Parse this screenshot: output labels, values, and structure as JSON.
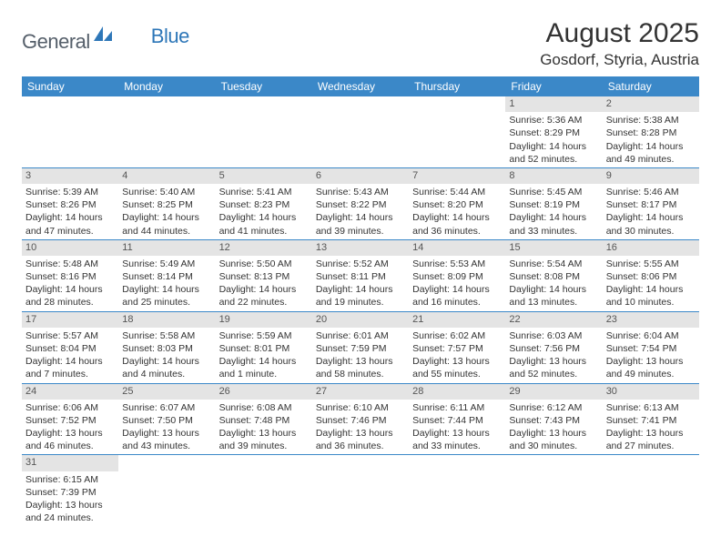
{
  "logo": {
    "text1": "General",
    "text2": "Blue"
  },
  "title": "August 2025",
  "location": "Gosdorf, Styria, Austria",
  "header_bg": "#3b88c8",
  "day_header_bg": "#e4e4e4",
  "weekdays": [
    "Sunday",
    "Monday",
    "Tuesday",
    "Wednesday",
    "Thursday",
    "Friday",
    "Saturday"
  ],
  "weeks": [
    [
      null,
      null,
      null,
      null,
      null,
      {
        "n": "1",
        "sr": "5:36 AM",
        "ss": "8:29 PM",
        "dl": "14 hours and 52 minutes."
      },
      {
        "n": "2",
        "sr": "5:38 AM",
        "ss": "8:28 PM",
        "dl": "14 hours and 49 minutes."
      }
    ],
    [
      {
        "n": "3",
        "sr": "5:39 AM",
        "ss": "8:26 PM",
        "dl": "14 hours and 47 minutes."
      },
      {
        "n": "4",
        "sr": "5:40 AM",
        "ss": "8:25 PM",
        "dl": "14 hours and 44 minutes."
      },
      {
        "n": "5",
        "sr": "5:41 AM",
        "ss": "8:23 PM",
        "dl": "14 hours and 41 minutes."
      },
      {
        "n": "6",
        "sr": "5:43 AM",
        "ss": "8:22 PM",
        "dl": "14 hours and 39 minutes."
      },
      {
        "n": "7",
        "sr": "5:44 AM",
        "ss": "8:20 PM",
        "dl": "14 hours and 36 minutes."
      },
      {
        "n": "8",
        "sr": "5:45 AM",
        "ss": "8:19 PM",
        "dl": "14 hours and 33 minutes."
      },
      {
        "n": "9",
        "sr": "5:46 AM",
        "ss": "8:17 PM",
        "dl": "14 hours and 30 minutes."
      }
    ],
    [
      {
        "n": "10",
        "sr": "5:48 AM",
        "ss": "8:16 PM",
        "dl": "14 hours and 28 minutes."
      },
      {
        "n": "11",
        "sr": "5:49 AM",
        "ss": "8:14 PM",
        "dl": "14 hours and 25 minutes."
      },
      {
        "n": "12",
        "sr": "5:50 AM",
        "ss": "8:13 PM",
        "dl": "14 hours and 22 minutes."
      },
      {
        "n": "13",
        "sr": "5:52 AM",
        "ss": "8:11 PM",
        "dl": "14 hours and 19 minutes."
      },
      {
        "n": "14",
        "sr": "5:53 AM",
        "ss": "8:09 PM",
        "dl": "14 hours and 16 minutes."
      },
      {
        "n": "15",
        "sr": "5:54 AM",
        "ss": "8:08 PM",
        "dl": "14 hours and 13 minutes."
      },
      {
        "n": "16",
        "sr": "5:55 AM",
        "ss": "8:06 PM",
        "dl": "14 hours and 10 minutes."
      }
    ],
    [
      {
        "n": "17",
        "sr": "5:57 AM",
        "ss": "8:04 PM",
        "dl": "14 hours and 7 minutes."
      },
      {
        "n": "18",
        "sr": "5:58 AM",
        "ss": "8:03 PM",
        "dl": "14 hours and 4 minutes."
      },
      {
        "n": "19",
        "sr": "5:59 AM",
        "ss": "8:01 PM",
        "dl": "14 hours and 1 minute."
      },
      {
        "n": "20",
        "sr": "6:01 AM",
        "ss": "7:59 PM",
        "dl": "13 hours and 58 minutes."
      },
      {
        "n": "21",
        "sr": "6:02 AM",
        "ss": "7:57 PM",
        "dl": "13 hours and 55 minutes."
      },
      {
        "n": "22",
        "sr": "6:03 AM",
        "ss": "7:56 PM",
        "dl": "13 hours and 52 minutes."
      },
      {
        "n": "23",
        "sr": "6:04 AM",
        "ss": "7:54 PM",
        "dl": "13 hours and 49 minutes."
      }
    ],
    [
      {
        "n": "24",
        "sr": "6:06 AM",
        "ss": "7:52 PM",
        "dl": "13 hours and 46 minutes."
      },
      {
        "n": "25",
        "sr": "6:07 AM",
        "ss": "7:50 PM",
        "dl": "13 hours and 43 minutes."
      },
      {
        "n": "26",
        "sr": "6:08 AM",
        "ss": "7:48 PM",
        "dl": "13 hours and 39 minutes."
      },
      {
        "n": "27",
        "sr": "6:10 AM",
        "ss": "7:46 PM",
        "dl": "13 hours and 36 minutes."
      },
      {
        "n": "28",
        "sr": "6:11 AM",
        "ss": "7:44 PM",
        "dl": "13 hours and 33 minutes."
      },
      {
        "n": "29",
        "sr": "6:12 AM",
        "ss": "7:43 PM",
        "dl": "13 hours and 30 minutes."
      },
      {
        "n": "30",
        "sr": "6:13 AM",
        "ss": "7:41 PM",
        "dl": "13 hours and 27 minutes."
      }
    ],
    [
      {
        "n": "31",
        "sr": "6:15 AM",
        "ss": "7:39 PM",
        "dl": "13 hours and 24 minutes."
      },
      null,
      null,
      null,
      null,
      null,
      null
    ]
  ],
  "labels": {
    "sunrise": "Sunrise:",
    "sunset": "Sunset:",
    "daylight": "Daylight:"
  }
}
